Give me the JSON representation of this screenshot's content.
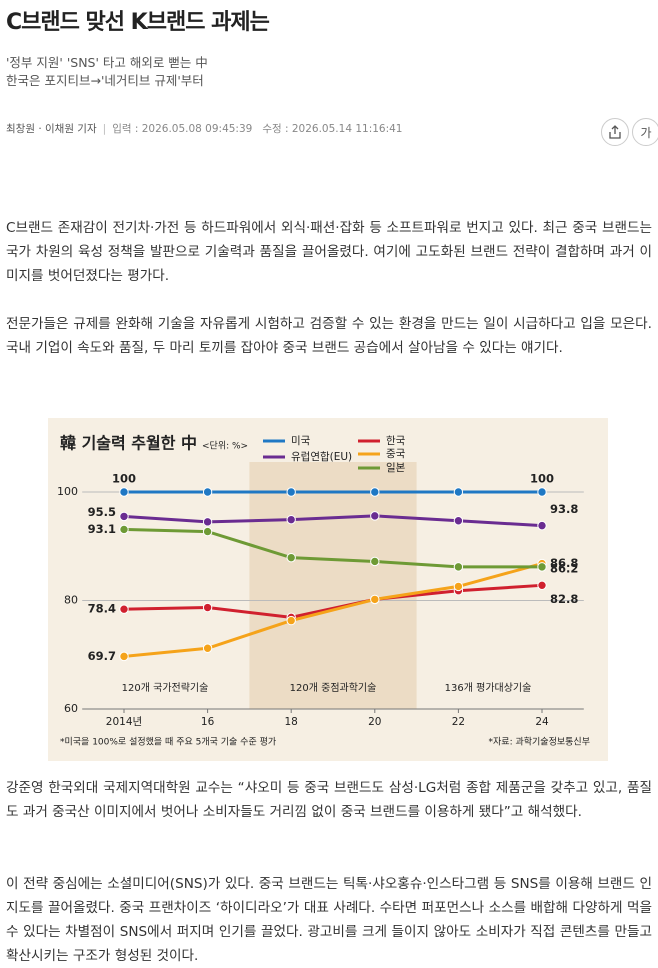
{
  "header": {
    "title": "C브랜드 맞선 K브랜드 과제는",
    "subtitles": [
      "'정부 지원' 'SNS' 타고 해외로 뻗는 中",
      "한국은 포지티브→'네거티브 규제'부터"
    ],
    "byline": {
      "reporters": "최창원 · 이채원 기자",
      "published": "입력 : 2026.05.08 09:45:39",
      "updated": "수정 : 2026.05.14 11:16:41"
    },
    "font_button": "가"
  },
  "body": {
    "paragraphs": [
      "C브랜드 존재감이 전기차·가전 등 하드파워에서 외식·패션·잡화 등 소프트파워로 번지고 있다. 최근 중국 브랜드는 국가 차원의 육성 정책을 발판으로 기술력과 품질을 끌어올렸다. 여기에 고도화된 브랜드 전략이 결합하며 과거 이미지를 벗어던졌다는 평가다.",
      "전문가들은 규제를 완화해 기술을 자유롭게 시험하고 검증할 수 있는 환경을 만드는 일이 시급하다고 입을 모은다. 국내 기업이 속도와 품질, 두 마리 토끼를 잡아야 중국 브랜드 공습에서 살아남을 수 있다는 얘기다.",
      "강준영 한국외대 국제지역대학원 교수는 “샤오미 등 중국 브랜드도 삼성·LG처럼 종합 제품군을 갖추고 있고, 품질도 과거 중국산 이미지에서 벗어나 소비자들도 거리낌 없이 중국 브랜드를 이용하게 됐다”고 해석했다.",
      "이 전략 중심에는 소셜미디어(SNS)가 있다. 중국 브랜드는 틱톡·샤오홍슈·인스타그램 등 SNS를 이용해 브랜드 인지도를 끌어올렸다. 중국 프랜차이즈 ‘하이디라오’가 대표 사례다. 수타면 퍼포먼스나 소스를 배합해 다양하게 먹을 수 있다는 차별점이 SNS에서 퍼지며 인기를 끌었다. 광고비를 크게 들이지 않아도 소비자가 직접 콘텐츠를 만들고 확산시키는 구조가 형성된 것이다."
    ]
  },
  "chart_data": {
    "type": "line",
    "title": "韓 기술력 추월한 中",
    "unit": "<단위: %>",
    "x": [
      2014,
      2016,
      2018,
      2020,
      2022,
      2024
    ],
    "xlim": [
      2013,
      2025
    ],
    "xticks": [
      {
        "value": 2014,
        "label": "2014년"
      },
      {
        "value": 2016,
        "label": "16"
      },
      {
        "value": 2018,
        "label": "18"
      },
      {
        "value": 2020,
        "label": "20"
      },
      {
        "value": 2022,
        "label": "22"
      },
      {
        "value": 2024,
        "label": "24"
      }
    ],
    "ylim": [
      60,
      100
    ],
    "yticks": [
      60,
      80,
      100
    ],
    "grid": true,
    "series": [
      {
        "name": "미국",
        "color": "#1f78c4",
        "values": [
          100,
          100,
          100,
          100,
          100,
          100
        ]
      },
      {
        "name": "유럽연합(EU)",
        "color": "#6a2c91",
        "values": [
          95.5,
          94.5,
          94.9,
          95.6,
          94.7,
          93.8
        ]
      },
      {
        "name": "한국",
        "color": "#d0202e",
        "values": [
          78.4,
          78.7,
          76.9,
          80.2,
          81.8,
          82.8
        ]
      },
      {
        "name": "중국",
        "color": "#f5a31a",
        "values": [
          69.7,
          71.2,
          76.3,
          80.2,
          82.6,
          86.8
        ]
      },
      {
        "name": "일본",
        "color": "#6e9a35",
        "values": [
          93.1,
          92.7,
          87.9,
          87.2,
          86.2,
          86.2
        ]
      }
    ],
    "annotations": [
      "120개 국가전략기술",
      "120개 중점과학기술",
      "136개 평가대상기술"
    ],
    "note": "*미국을 100%로 설정했을 때 주요 5개국 기술 수준 평가",
    "source": "*자료: 과학기술정보통신부"
  }
}
